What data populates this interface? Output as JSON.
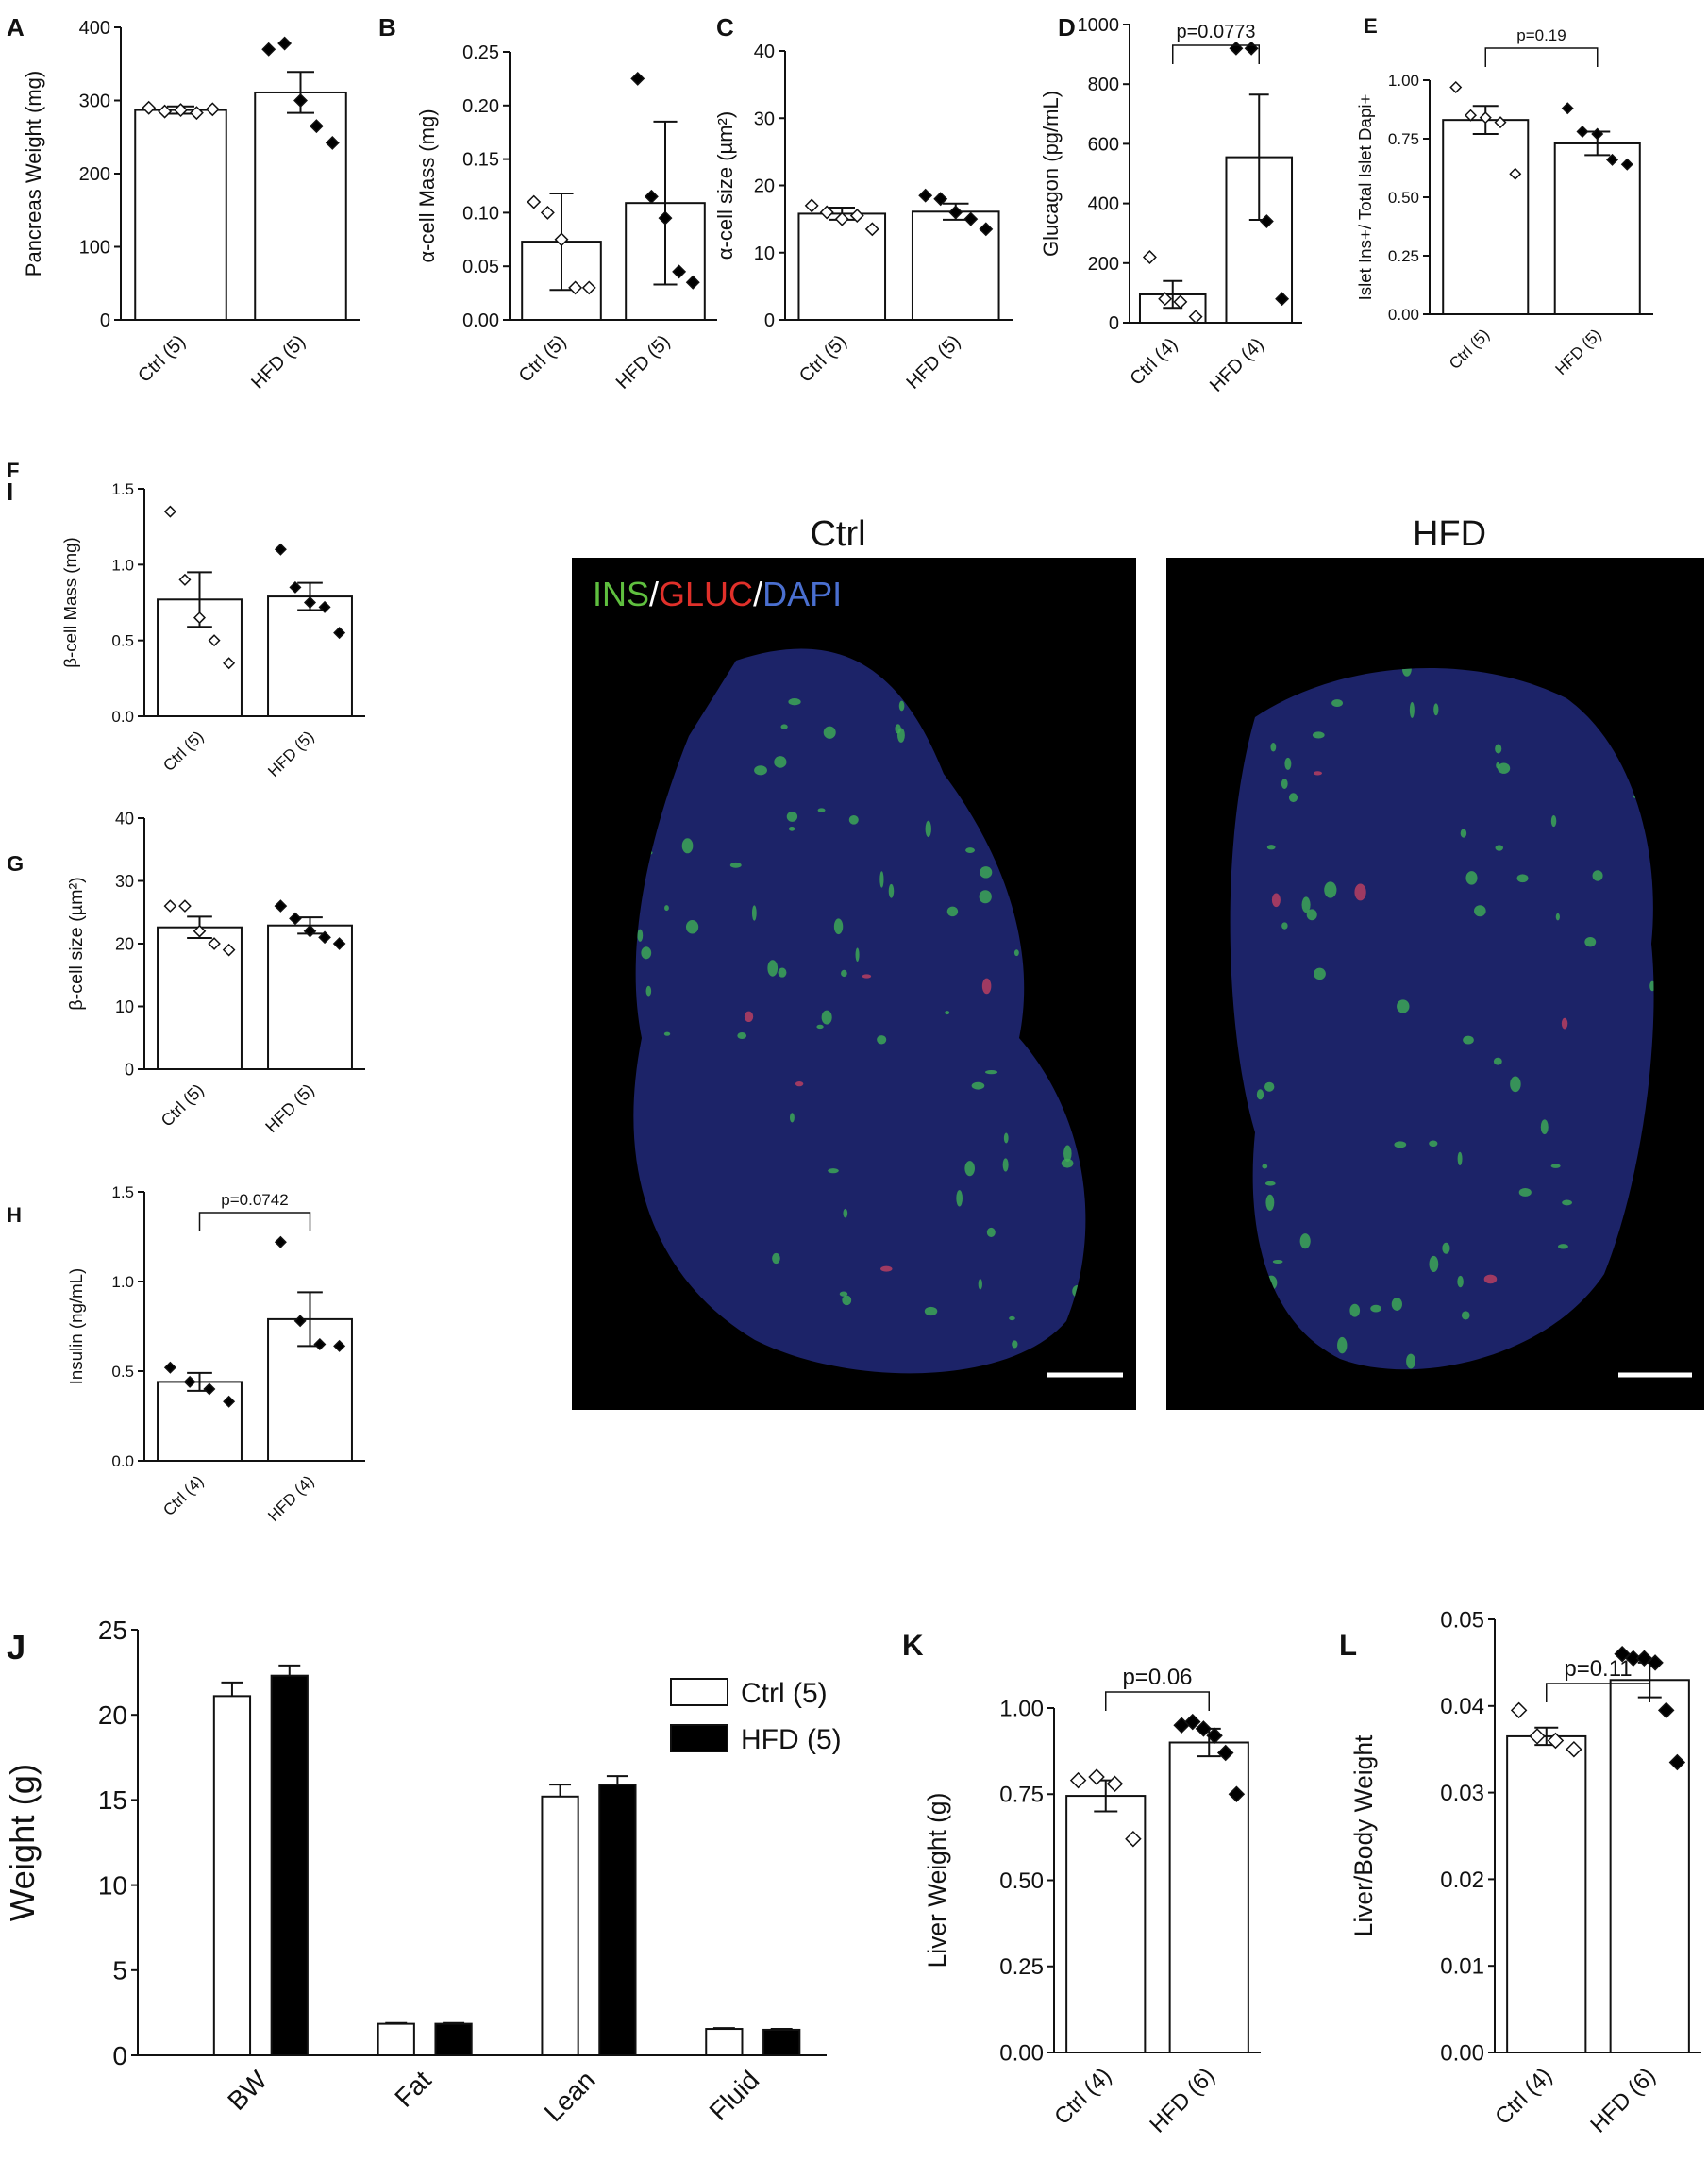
{
  "chart_data": [
    {
      "type": "bar",
      "panel": "A",
      "ylabel": "Pancreas Weight (mg)",
      "categories": [
        "Ctrl (5)",
        "HFD (5)"
      ],
      "values": [
        287,
        311
      ],
      "errors": [
        5,
        28
      ],
      "points": [
        [
          290,
          285,
          287,
          283,
          288
        ],
        [
          370,
          378,
          300,
          265,
          242
        ]
      ],
      "point_colors": [
        "#ffffff",
        "#000000"
      ],
      "bar_color": "#ffffff",
      "ylim": [
        0,
        400
      ],
      "yticks": [
        0,
        100,
        200,
        300,
        400
      ]
    },
    {
      "type": "bar",
      "panel": "B",
      "ylabel": "α-cell Mass (mg)",
      "categories": [
        "Ctrl (5)",
        "HFD (5)"
      ],
      "values": [
        0.073,
        0.109
      ],
      "errors": [
        0.045,
        0.076
      ],
      "points": [
        [
          0.11,
          0.1,
          0.075,
          0.03,
          0.03
        ],
        [
          0.225,
          0.115,
          0.095,
          0.045,
          0.035
        ]
      ],
      "point_colors": [
        "#ffffff",
        "#000000"
      ],
      "bar_color": "#ffffff",
      "ylim": [
        0,
        0.25
      ],
      "yticks": [
        {
          "value": 0,
          "label": "0.00"
        },
        0.05,
        {
          "value": 0.1,
          "label": "0.10"
        },
        0.15,
        {
          "value": 0.2,
          "label": "0.20"
        },
        0.25
      ]
    },
    {
      "type": "bar",
      "panel": "C",
      "ylabel": "α-cell size (µm²)",
      "categories": [
        "Ctrl (5)",
        "HFD (5)"
      ],
      "values": [
        15.8,
        16.1
      ],
      "errors": [
        0.9,
        1.2
      ],
      "points": [
        [
          17,
          16,
          15,
          15.5,
          13.5
        ],
        [
          18.5,
          18,
          16,
          15,
          13.5
        ]
      ],
      "point_colors": [
        "#ffffff",
        "#000000"
      ],
      "bar_color": "#ffffff",
      "ylim": [
        0,
        40
      ],
      "yticks": [
        0,
        10,
        20,
        30,
        40
      ]
    },
    {
      "type": "bar",
      "panel": "D",
      "ylabel": "Glucagon (pg/mL)",
      "categories": [
        "Ctrl (4)",
        "HFD (4)"
      ],
      "values": [
        95,
        555
      ],
      "errors": [
        45,
        210
      ],
      "points": [
        [
          220,
          80,
          70,
          20
        ],
        [
          920,
          920,
          340,
          80
        ]
      ],
      "point_colors": [
        "#ffffff",
        "#000000"
      ],
      "bar_color": "#ffffff",
      "ylim": [
        0,
        1000
      ],
      "yticks": [
        0,
        200,
        400,
        600,
        800,
        1000
      ],
      "annotation": "p=0.0773"
    },
    {
      "type": "bar",
      "panel": "E",
      "ylabel": "Islet Ins+/ Total Islet Dapi+",
      "categories": [
        "Ctrl (5)",
        "HFD (5)"
      ],
      "values": [
        0.83,
        0.73
      ],
      "errors": [
        0.06,
        0.05
      ],
      "points": [
        [
          0.97,
          0.85,
          0.84,
          0.82,
          0.6
        ],
        [
          0.88,
          0.78,
          0.77,
          0.66,
          0.64
        ]
      ],
      "point_colors": [
        "#ffffff",
        "#000000"
      ],
      "bar_color": "#ffffff",
      "ylim": [
        0,
        1
      ],
      "yticks": [
        {
          "value": 0,
          "label": "0.00"
        },
        0.25,
        {
          "value": 0.5,
          "label": "0.50"
        },
        0.75,
        {
          "value": 1,
          "label": "1.00"
        }
      ],
      "annotation": "p=0.19"
    },
    {
      "type": "bar",
      "panel": "F",
      "ylabel": "β-cell Mass (mg)",
      "categories": [
        "Ctrl (5)",
        "HFD (5)"
      ],
      "values": [
        0.77,
        0.79
      ],
      "errors": [
        0.18,
        0.09
      ],
      "points": [
        [
          1.35,
          0.9,
          0.65,
          0.5,
          0.35
        ],
        [
          1.1,
          0.85,
          0.75,
          0.72,
          0.55
        ]
      ],
      "point_colors": [
        "#ffffff",
        "#000000"
      ],
      "bar_color": "#ffffff",
      "ylim": [
        0,
        1.5
      ],
      "yticks": [
        {
          "value": 0,
          "label": "0.0"
        },
        0.5,
        {
          "value": 1,
          "label": "1.0"
        },
        1.5
      ]
    },
    {
      "type": "bar",
      "panel": "G",
      "ylabel": "β-cell size (µm²)",
      "categories": [
        "Ctrl (5)",
        "HFD (5)"
      ],
      "values": [
        22.6,
        22.9
      ],
      "errors": [
        1.7,
        1.3
      ],
      "points": [
        [
          26,
          26,
          22,
          20,
          19
        ],
        [
          26,
          24,
          22,
          21,
          20
        ]
      ],
      "point_colors": [
        "#ffffff",
        "#000000"
      ],
      "bar_color": "#ffffff",
      "ylim": [
        0,
        40
      ],
      "yticks": [
        0,
        10,
        20,
        30,
        40
      ]
    },
    {
      "type": "bar",
      "panel": "H",
      "ylabel": "Insulin (ng/mL)",
      "categories": [
        "Ctrl (4)",
        "HFD (4)"
      ],
      "values": [
        0.44,
        0.79
      ],
      "errors": [
        0.05,
        0.15
      ],
      "points": [
        [
          0.52,
          0.44,
          0.4,
          0.33
        ],
        [
          1.22,
          0.78,
          0.65,
          0.64
        ]
      ],
      "point_colors": [
        "#000000",
        "#000000"
      ],
      "bar_color": "#ffffff",
      "ylim": [
        0,
        1.5
      ],
      "yticks": [
        {
          "value": 0,
          "label": "0.0"
        },
        0.5,
        {
          "value": 1,
          "label": "1.0"
        },
        1.5
      ],
      "annotation": "p=0.0742"
    },
    {
      "type": "grouped_bar",
      "panel": "J",
      "ylabel": "Weight (g)",
      "categories": [
        "BW",
        "Fat",
        "Lean",
        "Fluid"
      ],
      "series": [
        {
          "name": "Ctrl (5)",
          "color": "#ffffff",
          "values": [
            21.1,
            1.85,
            15.2,
            1.55
          ],
          "errors": [
            0.8,
            0.05,
            0.7,
            0.05
          ]
        },
        {
          "name": "HFD (5)",
          "color": "#000000",
          "values": [
            22.3,
            1.85,
            15.9,
            1.5
          ],
          "errors": [
            0.6,
            0.05,
            0.5,
            0.05
          ]
        }
      ],
      "ylim": [
        0,
        25
      ],
      "yticks": [
        0,
        5,
        10,
        15,
        20,
        25
      ]
    },
    {
      "type": "bar",
      "panel": "K",
      "ylabel": "Liver Weight  (g)",
      "categories": [
        "Ctrl (4)",
        "HFD (6)"
      ],
      "values": [
        0.745,
        0.9
      ],
      "errors": [
        0.045,
        0.04
      ],
      "points": [
        [
          0.79,
          0.8,
          0.78,
          0.62
        ],
        [
          0.95,
          0.96,
          0.94,
          0.92,
          0.87,
          0.75
        ]
      ],
      "point_colors": [
        "#ffffff",
        "#000000"
      ],
      "bar_color": "#ffffff",
      "ylim": [
        0,
        1
      ],
      "yticks": [
        {
          "value": 0,
          "label": "0.00"
        },
        0.25,
        {
          "value": 0.5,
          "label": "0.50"
        },
        0.75,
        {
          "value": 1,
          "label": "1.00"
        }
      ],
      "annotation": "p=0.06"
    },
    {
      "type": "bar",
      "panel": "L",
      "ylabel": "Liver/Body Weight",
      "categories": [
        "Ctrl (4)",
        "HFD (6)"
      ],
      "values": [
        0.0365,
        0.043
      ],
      "errors": [
        0.001,
        0.002
      ],
      "points": [
        [
          0.0395,
          0.0365,
          0.036,
          0.035
        ],
        [
          0.046,
          0.0455,
          0.0455,
          0.045,
          0.0395,
          0.0335
        ]
      ],
      "point_colors": [
        "#ffffff",
        "#000000"
      ],
      "bar_color": "#ffffff",
      "ylim": [
        0,
        0.05
      ],
      "yticks": [
        {
          "value": 0,
          "label": "0.00"
        },
        0.01,
        0.02,
        0.03,
        0.04,
        0.05
      ],
      "annotation": "p=0.11"
    }
  ],
  "image_panel": {
    "panel": "I",
    "titles": [
      "Ctrl",
      "HFD"
    ],
    "stain": [
      "INS",
      "/",
      "GLUC",
      "/",
      "DAPI"
    ]
  }
}
